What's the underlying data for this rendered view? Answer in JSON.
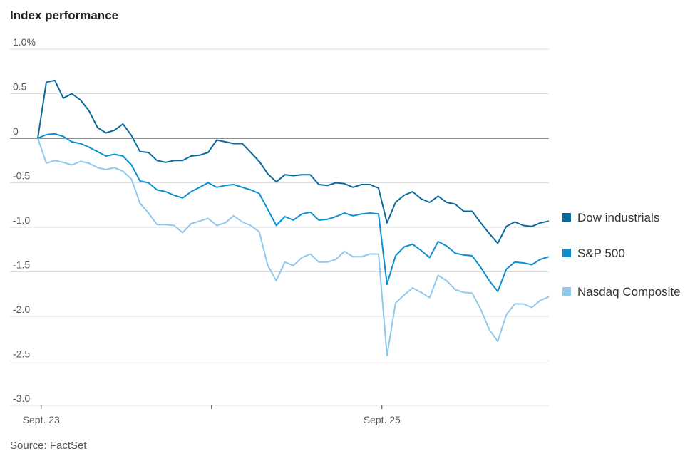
{
  "chart_data": {
    "type": "line",
    "title": "Index performance",
    "source": "Source: FactSet",
    "x": [
      -0.02,
      0.03,
      0.08,
      0.13,
      0.18,
      0.23,
      0.28,
      0.33,
      0.38,
      0.43,
      0.48,
      0.53,
      0.58,
      0.63,
      0.68,
      0.73,
      0.78,
      0.83,
      0.88,
      0.93,
      0.98,
      1.03,
      1.08,
      1.13,
      1.18,
      1.23,
      1.28,
      1.33,
      1.38,
      1.43,
      1.48,
      1.53,
      1.58,
      1.63,
      1.68,
      1.73,
      1.78,
      1.83,
      1.88,
      1.93,
      1.98,
      2.03,
      2.08,
      2.13,
      2.18,
      2.23,
      2.28,
      2.33,
      2.38,
      2.43,
      2.48,
      2.53,
      2.58,
      2.63,
      2.68,
      2.73,
      2.78,
      2.83,
      2.88,
      2.93,
      2.98
    ],
    "series": [
      {
        "name": "Dow industrials",
        "color": "#0b6a9c",
        "values": [
          0,
          0.63,
          0.65,
          0.45,
          0.5,
          0.43,
          0.31,
          0.12,
          0.06,
          0.09,
          0.16,
          0.03,
          -0.15,
          -0.16,
          -0.25,
          -0.27,
          -0.25,
          -0.25,
          -0.2,
          -0.19,
          -0.16,
          -0.02,
          -0.04,
          -0.06,
          -0.06,
          -0.16,
          -0.26,
          -0.4,
          -0.49,
          -0.41,
          -0.42,
          -0.41,
          -0.41,
          -0.52,
          -0.53,
          -0.5,
          -0.51,
          -0.55,
          -0.52,
          -0.52,
          -0.56,
          -0.95,
          -0.72,
          -0.64,
          -0.6,
          -0.68,
          -0.72,
          -0.65,
          -0.72,
          -0.74,
          -0.82,
          -0.82,
          -0.95,
          -1.07,
          -1.18,
          -0.99,
          -0.94,
          -0.98,
          -0.99,
          -0.95,
          -0.93
        ]
      },
      {
        "name": "S&P 500",
        "color": "#0c8fd1",
        "values": [
          0,
          0.04,
          0.05,
          0.02,
          -0.04,
          -0.06,
          -0.1,
          -0.15,
          -0.2,
          -0.18,
          -0.2,
          -0.3,
          -0.48,
          -0.5,
          -0.58,
          -0.6,
          -0.64,
          -0.67,
          -0.6,
          -0.55,
          -0.5,
          -0.55,
          -0.53,
          -0.52,
          -0.55,
          -0.58,
          -0.62,
          -0.8,
          -0.98,
          -0.88,
          -0.92,
          -0.85,
          -0.83,
          -0.92,
          -0.91,
          -0.88,
          -0.84,
          -0.87,
          -0.85,
          -0.84,
          -0.85,
          -1.64,
          -1.32,
          -1.22,
          -1.19,
          -1.26,
          -1.34,
          -1.16,
          -1.21,
          -1.29,
          -1.31,
          -1.32,
          -1.45,
          -1.6,
          -1.72,
          -1.47,
          -1.39,
          -1.4,
          -1.42,
          -1.36,
          -1.33
        ]
      },
      {
        "name": "Nasdaq Composite",
        "color": "#90c9ea",
        "values": [
          0,
          -0.28,
          -0.25,
          -0.27,
          -0.3,
          -0.26,
          -0.28,
          -0.33,
          -0.35,
          -0.33,
          -0.37,
          -0.46,
          -0.73,
          -0.84,
          -0.97,
          -0.97,
          -0.98,
          -1.06,
          -0.96,
          -0.93,
          -0.9,
          -0.98,
          -0.95,
          -0.87,
          -0.94,
          -0.98,
          -1.05,
          -1.43,
          -1.6,
          -1.39,
          -1.43,
          -1.34,
          -1.3,
          -1.39,
          -1.39,
          -1.36,
          -1.27,
          -1.33,
          -1.33,
          -1.3,
          -1.3,
          -2.44,
          -1.85,
          -1.76,
          -1.68,
          -1.73,
          -1.79,
          -1.54,
          -1.6,
          -1.7,
          -1.73,
          -1.74,
          -1.92,
          -2.15,
          -2.28,
          -1.98,
          -1.86,
          -1.86,
          -1.9,
          -1.82,
          -1.78
        ]
      }
    ],
    "xlim": [
      -0.02,
      2.98
    ],
    "xticks": [
      {
        "value": 0,
        "label": "Sept. 23"
      },
      {
        "value": 1,
        "label": null
      },
      {
        "value": 2,
        "label": "Sept. 25"
      }
    ],
    "ylim": [
      -3,
      1
    ],
    "yticks": [
      {
        "value": 1,
        "label": "1.0%"
      },
      0.5,
      0,
      -0.5,
      {
        "value": -1,
        "label": "-1.0"
      },
      -1.5,
      {
        "value": -2,
        "label": "-2.0"
      },
      -2.5,
      {
        "value": -3,
        "label": "-3.0"
      }
    ],
    "grid": true
  }
}
